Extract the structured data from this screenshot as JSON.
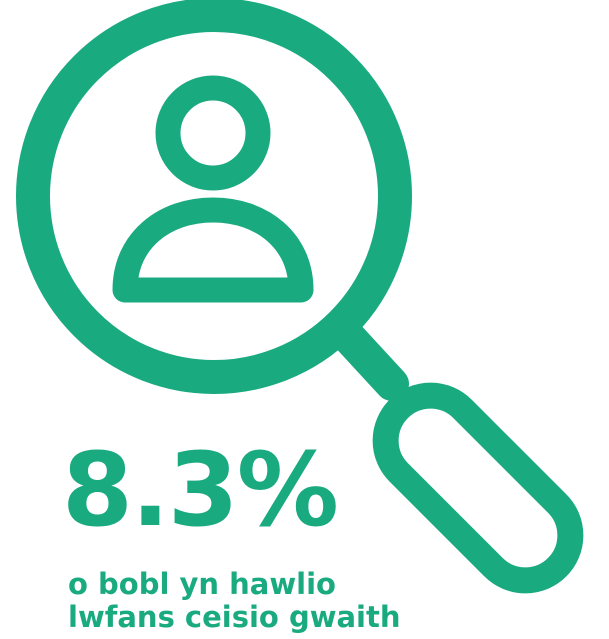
{
  "colors": {
    "accent": "#1aaa80"
  },
  "icons": {
    "magnifier": "magnifying-glass-icon",
    "person": "person-icon"
  },
  "statistic": {
    "value": "8.3%",
    "caption_line_1": "o bobl yn hawlio",
    "caption_line_2": "lwfans ceisio gwaith"
  }
}
